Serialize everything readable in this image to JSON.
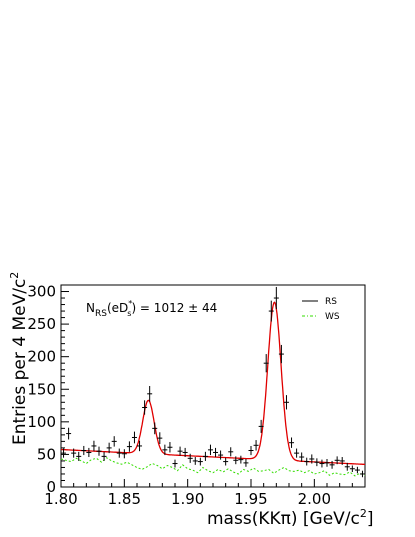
{
  "chart_data": {
    "type": "scatter",
    "title": "",
    "xlabel": "mass(KKπ) [GeV/c",
    "xlabel_sup": "2",
    "xlabel_end": "]",
    "ylabel": "Entries per 4 MeV/c",
    "ylabel_sup": "2",
    "xlim": [
      1.8,
      2.04
    ],
    "ylim": [
      0,
      310
    ],
    "x_ticks": [
      1.8,
      1.85,
      1.9,
      1.95,
      2.0
    ],
    "x_tick_labels": [
      "1.80",
      "1.85",
      "1.90",
      "1.95",
      "2.00"
    ],
    "y_ticks": [
      0,
      50,
      100,
      150,
      200,
      250,
      300
    ],
    "y_tick_labels": [
      "0",
      "50",
      "100",
      "150",
      "200",
      "250",
      "300"
    ],
    "annotation": {
      "n": "N",
      "n_sub": "RS",
      "open": "(eD",
      "d_sub": "s",
      "d_sup": "*",
      "close": ") = 1012 ± 44"
    },
    "legend": {
      "position": "top-right",
      "rs_label": "RS",
      "ws_label": "WS"
    },
    "colors": {
      "rs_points": "#000000",
      "fit": "#e00000",
      "ws": "#33dd00"
    },
    "series": [
      {
        "name": "RS",
        "style": "points-with-errors",
        "x": [
          1.802,
          1.806,
          1.81,
          1.814,
          1.818,
          1.822,
          1.826,
          1.83,
          1.834,
          1.838,
          1.842,
          1.846,
          1.85,
          1.854,
          1.858,
          1.862,
          1.866,
          1.87,
          1.874,
          1.878,
          1.882,
          1.886,
          1.89,
          1.894,
          1.898,
          1.902,
          1.906,
          1.91,
          1.914,
          1.918,
          1.922,
          1.926,
          1.93,
          1.934,
          1.938,
          1.942,
          1.946,
          1.95,
          1.954,
          1.958,
          1.962,
          1.966,
          1.97,
          1.974,
          1.978,
          1.982,
          1.986,
          1.99,
          1.994,
          1.998,
          2.002,
          2.006,
          2.01,
          2.014,
          2.018,
          2.022,
          2.026,
          2.03,
          2.034,
          2.038
        ],
        "y": [
          52,
          82,
          52,
          47,
          56,
          53,
          63,
          55,
          47,
          60,
          70,
          52,
          51,
          62,
          76,
          63,
          122,
          143,
          90,
          75,
          57,
          61,
          36,
          55,
          53,
          44,
          40,
          39,
          47,
          57,
          53,
          49,
          39,
          54,
          41,
          42,
          37,
          56,
          64,
          93,
          190,
          270,
          290,
          204,
          130,
          68,
          52,
          46,
          39,
          43,
          38,
          36,
          37,
          34,
          41,
          40,
          31,
          28,
          26,
          20
        ],
        "err": [
          7,
          9,
          7,
          7,
          7,
          7,
          8,
          7,
          7,
          8,
          8,
          7,
          7,
          8,
          9,
          8,
          11,
          12,
          9,
          9,
          8,
          8,
          6,
          7,
          7,
          7,
          6,
          6,
          7,
          8,
          7,
          7,
          6,
          7,
          6,
          6,
          6,
          7,
          8,
          10,
          14,
          16,
          17,
          14,
          11,
          8,
          7,
          7,
          6,
          7,
          6,
          6,
          6,
          6,
          6,
          6,
          6,
          5,
          5,
          5
        ]
      },
      {
        "name": "WS",
        "style": "dotted-line",
        "x": [
          1.8,
          1.804,
          1.808,
          1.812,
          1.816,
          1.82,
          1.824,
          1.828,
          1.832,
          1.836,
          1.84,
          1.844,
          1.848,
          1.852,
          1.856,
          1.86,
          1.864,
          1.868,
          1.872,
          1.876,
          1.88,
          1.884,
          1.888,
          1.892,
          1.896,
          1.9,
          1.904,
          1.908,
          1.912,
          1.916,
          1.92,
          1.924,
          1.928,
          1.932,
          1.936,
          1.94,
          1.944,
          1.948,
          1.952,
          1.956,
          1.96,
          1.964,
          1.968,
          1.972,
          1.976,
          1.98,
          1.984,
          1.988,
          1.992,
          1.996,
          2.0,
          2.004,
          2.008,
          2.012,
          2.016,
          2.02,
          2.024,
          2.028,
          2.032,
          2.036,
          2.04
        ],
        "y": [
          43,
          41,
          39,
          44,
          40,
          36,
          42,
          44,
          38,
          45,
          40,
          37,
          35,
          38,
          34,
          30,
          27,
          31,
          36,
          33,
          28,
          33,
          30,
          25,
          34,
          28,
          26,
          22,
          30,
          25,
          22,
          27,
          23,
          28,
          23,
          20,
          27,
          24,
          29,
          24,
          25,
          27,
          21,
          26,
          30,
          25,
          24,
          26,
          22,
          25,
          20,
          22,
          25,
          18,
          22,
          20,
          19,
          23,
          17,
          21,
          18
        ]
      },
      {
        "name": "fit",
        "style": "curve",
        "background": {
          "a": 57.5,
          "b": -95
        },
        "peaks": [
          {
            "mean": 1.869,
            "sigma": 0.0045,
            "amplitude": 82
          },
          {
            "mean": 1.9685,
            "sigma": 0.0052,
            "amplitude": 242
          }
        ]
      }
    ]
  }
}
